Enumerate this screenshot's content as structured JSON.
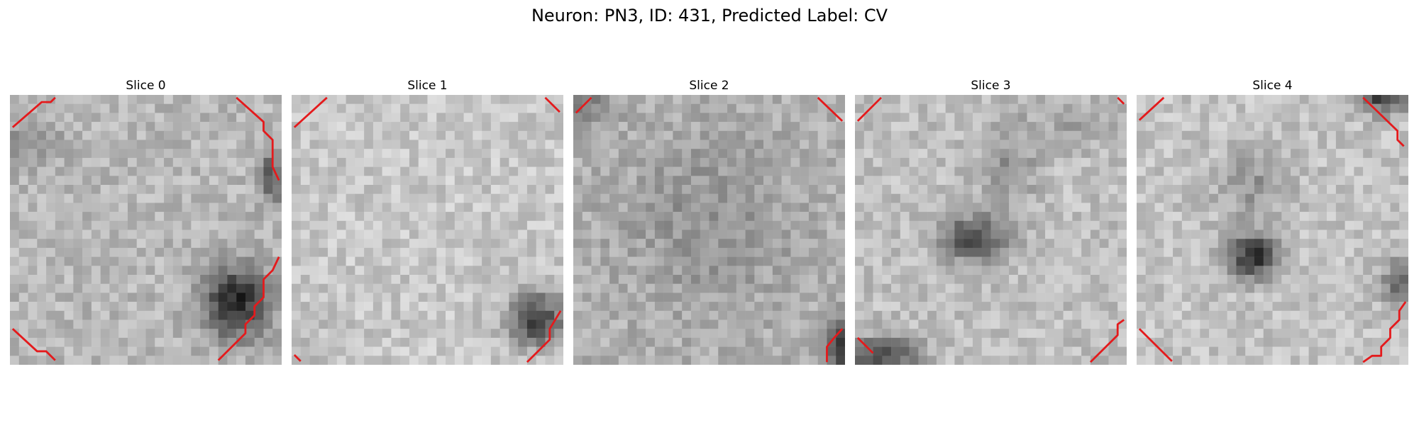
{
  "figure": {
    "title": "Neuron: PN3, ID: 431, Predicted Label: CV"
  },
  "slices": [
    {
      "label": "Slice 0"
    },
    {
      "label": "Slice 1"
    },
    {
      "label": "Slice 2"
    },
    {
      "label": "Slice 3"
    },
    {
      "label": "Slice 4"
    }
  ],
  "colors": {
    "contour": "#e41a1c",
    "background": "#ffffff"
  }
}
